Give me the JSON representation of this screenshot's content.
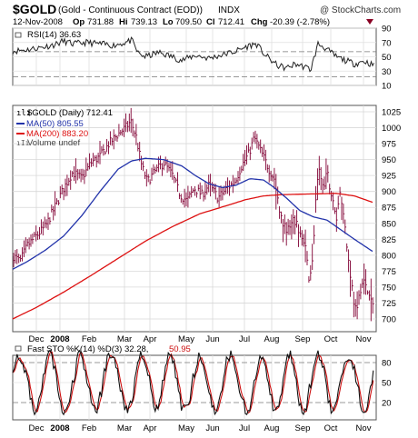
{
  "header": {
    "symbol": "$GOLD",
    "name": "(Gold - Continuous Contract (EOD))",
    "exchange": "INDX",
    "watermark": "@ StockCharts.com",
    "date": "12-Nov-2008",
    "op_label": "Op",
    "op": "731.88",
    "hi_label": "Hi",
    "hi": "739.13",
    "lo_label": "Lo",
    "lo": "709.50",
    "cl_label": "Cl",
    "cl": "712.41",
    "chg_label": "Chg",
    "chg": "-20.39 (-2.78%)"
  },
  "rsi": {
    "legend": "RSI(14) 36.63",
    "ticks": [
      "90",
      "70",
      "50",
      "30",
      "10"
    ]
  },
  "price": {
    "legend_main": "$GOLD (Daily) 712.41",
    "legend_ma50": "MA(50) 805.55",
    "legend_ma200": "MA(200) 883.20",
    "legend_volume": "Volume undef",
    "ticks": [
      "1025",
      "1000",
      "975",
      "950",
      "925",
      "900",
      "875",
      "850",
      "825",
      "800",
      "775",
      "750",
      "725",
      "700"
    ]
  },
  "sto": {
    "legend_label": "Fast STO %K(14) %D(3) 32.28,",
    "legend_d": "50.95",
    "ticks": [
      "80",
      "50",
      "20"
    ]
  },
  "months": [
    "Dec",
    "2008",
    "Feb",
    "Mar",
    "Apr",
    "May",
    "Jun",
    "Jul",
    "Aug",
    "Sep",
    "Oct",
    "Nov"
  ],
  "colors": {
    "ma50": "#2233aa",
    "ma200": "#dd1111",
    "bars": "#800033",
    "sto_d": "#cc1111",
    "chg": "#880022"
  },
  "chart_data": {
    "type": "line",
    "title": "$GOLD (Gold - Continuous Contract (EOD)) INDX",
    "x": [
      "Dec-07",
      "Jan-08",
      "Feb-08",
      "Mar-08",
      "Apr-08",
      "May-08",
      "Jun-08",
      "Jul-08",
      "Aug-08",
      "Sep-08",
      "Oct-08",
      "Nov-08"
    ],
    "series": [
      {
        "name": "$GOLD (Daily)",
        "values": [
          800,
          880,
          945,
          990,
          905,
          895,
          905,
          950,
          840,
          805,
          860,
          712
        ]
      },
      {
        "name": "MA(50)",
        "values": [
          790,
          805,
          850,
          930,
          950,
          930,
          910,
          920,
          920,
          860,
          860,
          805
        ]
      },
      {
        "name": "MA(200)",
        "values": [
          690,
          715,
          750,
          790,
          835,
          860,
          875,
          895,
          895,
          895,
          895,
          883
        ]
      }
    ],
    "ylim": [
      680,
      1035
    ],
    "rsi_panel": {
      "name": "RSI(14)",
      "last": 36.63,
      "ylim": [
        10,
        90
      ]
    },
    "sto_panel": {
      "name": "Fast STO %K(14) %D(3)",
      "k_last": 32.28,
      "d_last": 50.95,
      "ylim": [
        0,
        100
      ]
    }
  }
}
